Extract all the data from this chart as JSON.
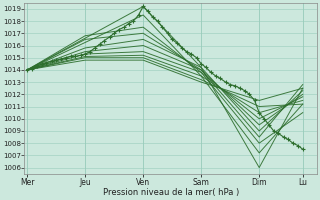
{
  "title": "",
  "xlabel": "Pression niveau de la mer( hPa )",
  "bg_color": "#cce8dd",
  "grid_color": "#99ccbb",
  "line_color": "#2d6e2d",
  "ylim": [
    1005.5,
    1019.5
  ],
  "yticks": [
    1006,
    1007,
    1008,
    1009,
    1010,
    1011,
    1012,
    1013,
    1014,
    1015,
    1016,
    1017,
    1018,
    1019
  ],
  "day_labels": [
    "Mer",
    "Jeu",
    "Ven",
    "Sam",
    "Dim",
    "Lu"
  ],
  "day_positions": [
    0,
    1,
    2,
    3,
    4,
    4.75
  ],
  "xlim": [
    -0.05,
    5.0
  ],
  "series": [
    [
      0,
      1014.0,
      2.0,
      1019.2,
      3.0,
      1014.2,
      4.0,
      1006.0,
      4.75,
      1012.5
    ],
    [
      0,
      1014.0,
      2.0,
      1018.5,
      3.0,
      1013.5,
      4.0,
      1007.2,
      4.75,
      1011.2
    ],
    [
      0,
      1014.0,
      1.0,
      1016.8,
      2.0,
      1017.5,
      3.0,
      1013.8,
      4.0,
      1008.0,
      4.75,
      1010.5
    ],
    [
      0,
      1014.0,
      1.0,
      1016.5,
      2.0,
      1017.0,
      3.0,
      1014.0,
      4.0,
      1008.5,
      4.75,
      1012.8
    ],
    [
      0,
      1014.0,
      1.0,
      1015.8,
      2.0,
      1016.5,
      3.0,
      1014.2,
      4.0,
      1009.0,
      4.75,
      1012.3
    ],
    [
      0,
      1014.0,
      1.0,
      1015.5,
      2.0,
      1016.0,
      3.0,
      1014.0,
      4.0,
      1009.5,
      4.75,
      1012.0
    ],
    [
      0,
      1014.0,
      1.0,
      1015.3,
      2.0,
      1015.5,
      3.0,
      1013.8,
      4.0,
      1010.0,
      4.75,
      1011.8
    ],
    [
      0,
      1014.0,
      1.0,
      1015.1,
      2.0,
      1015.2,
      3.0,
      1013.5,
      4.0,
      1010.5,
      4.75,
      1011.5
    ],
    [
      0,
      1014.0,
      1.0,
      1015.0,
      2.0,
      1015.0,
      3.0,
      1013.2,
      4.0,
      1011.0,
      4.75,
      1011.2
    ],
    [
      0,
      1014.0,
      1.0,
      1014.8,
      2.0,
      1014.8,
      3.0,
      1013.0,
      4.0,
      1011.5,
      4.75,
      1012.5
    ]
  ],
  "main_series": {
    "x": [
      0.0,
      0.083,
      0.167,
      0.25,
      0.33,
      0.42,
      0.5,
      0.58,
      0.67,
      0.75,
      0.83,
      0.92,
      1.0,
      1.083,
      1.167,
      1.25,
      1.33,
      1.42,
      1.5,
      1.58,
      1.67,
      1.75,
      1.83,
      1.92,
      2.0,
      2.083,
      2.167,
      2.25,
      2.33,
      2.42,
      2.5,
      2.58,
      2.67,
      2.75,
      2.83,
      2.92,
      3.0,
      3.083,
      3.167,
      3.25,
      3.33,
      3.42,
      3.5,
      3.58,
      3.67,
      3.75,
      3.83,
      3.92,
      4.0,
      4.083,
      4.167,
      4.25,
      4.33,
      4.42,
      4.5,
      4.58,
      4.67,
      4.75
    ],
    "y": [
      1014.0,
      1014.1,
      1014.3,
      1014.5,
      1014.6,
      1014.7,
      1014.8,
      1014.9,
      1015.0,
      1015.1,
      1015.1,
      1015.2,
      1015.3,
      1015.5,
      1015.8,
      1016.1,
      1016.4,
      1016.7,
      1017.0,
      1017.3,
      1017.5,
      1017.8,
      1018.0,
      1018.5,
      1019.2,
      1018.8,
      1018.3,
      1018.0,
      1017.5,
      1017.0,
      1016.5,
      1016.2,
      1015.8,
      1015.5,
      1015.3,
      1015.0,
      1014.5,
      1014.2,
      1013.8,
      1013.5,
      1013.3,
      1013.0,
      1012.8,
      1012.7,
      1012.5,
      1012.3,
      1012.0,
      1011.5,
      1010.5,
      1010.0,
      1009.5,
      1009.0,
      1008.8,
      1008.5,
      1008.3,
      1008.0,
      1007.8,
      1007.5
    ]
  }
}
